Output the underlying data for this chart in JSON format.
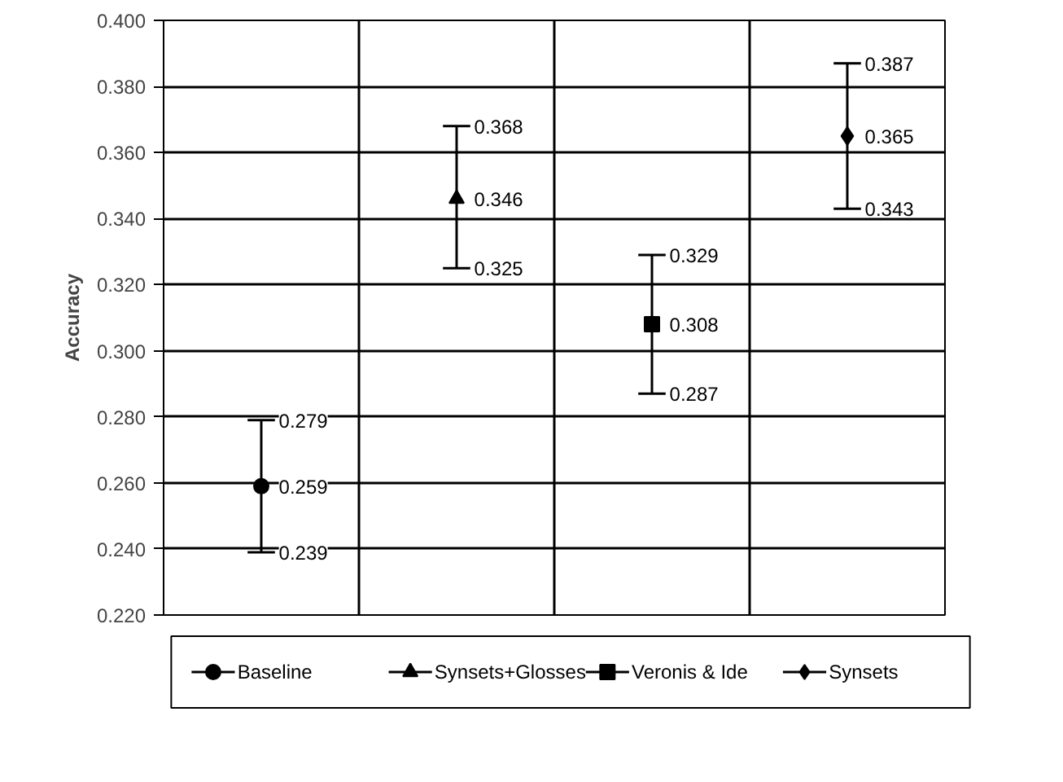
{
  "chart_data": {
    "type": "scatter",
    "ylabel": "Accuracy",
    "categories": [
      null,
      null,
      null,
      null
    ],
    "ylim": [
      0.22,
      0.4
    ],
    "yticks": [
      {
        "value": 0.22,
        "label": "0.220"
      },
      {
        "value": 0.24,
        "label": "0.240"
      },
      {
        "value": 0.26,
        "label": "0.260"
      },
      {
        "value": 0.28,
        "label": "0.280"
      },
      {
        "value": 0.3,
        "label": "0.300"
      },
      {
        "value": 0.32,
        "label": "0.320"
      },
      {
        "value": 0.34,
        "label": "0.340"
      },
      {
        "value": 0.36,
        "label": "0.360"
      },
      {
        "value": 0.38,
        "label": "0.380"
      },
      {
        "value": 0.4,
        "label": "0.400"
      }
    ],
    "annotations": [
      "0.239",
      "0.279",
      "0.325",
      "0.368",
      "0.287",
      "0.329",
      "0.343",
      "0.387"
    ],
    "grid": true,
    "legend": "bottom",
    "tick_labels": "y",
    "data_labels": true,
    "series": [
      {
        "name": "Baseline",
        "color": "#000000",
        "marker": "circle",
        "values": [
          0.259,
          null,
          null,
          null
        ],
        "errors": [
          [
            0.239,
            0.279
          ],
          null,
          null,
          null
        ]
      },
      {
        "name": "Synsets+Glosses",
        "color": "#000000",
        "marker": "triangle",
        "values": [
          null,
          0.346,
          null,
          null
        ],
        "errors": [
          null,
          [
            0.325,
            0.368
          ],
          null,
          null
        ]
      },
      {
        "name": "Veronis & Ide",
        "color": "#000000",
        "marker": "square",
        "values": [
          null,
          null,
          0.308,
          null
        ],
        "errors": [
          null,
          null,
          [
            0.287,
            0.329
          ],
          null
        ]
      },
      {
        "name": "Synsets",
        "color": "#000000",
        "marker": "diamond",
        "values": [
          null,
          null,
          null,
          0.365
        ],
        "errors": [
          null,
          null,
          null,
          [
            0.343,
            0.387
          ]
        ]
      }
    ]
  }
}
